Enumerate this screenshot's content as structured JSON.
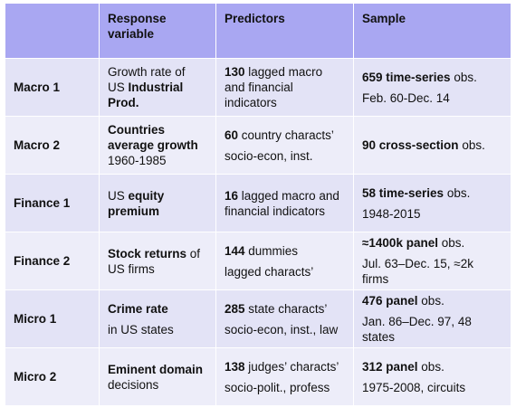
{
  "header": {
    "col1": "",
    "col2_line1": "Response",
    "col2_line2": "variable",
    "col3": "Predictors",
    "col4": "Sample"
  },
  "rows": [
    {
      "label": "Macro 1",
      "resp": {
        "l1a": "Growth rate of",
        "l2a": "US ",
        "l2b": "Industrial",
        "l3b": "Prod."
      },
      "pred": {
        "num": "130",
        "l1": " lagged macro",
        "l2": "and financial",
        "l3": "indicators"
      },
      "sample": {
        "b1": "659 time-series",
        "t1": " obs.",
        "l2": "Feb. 60-Dec. 14"
      }
    },
    {
      "label": "Macro 2",
      "resp": {
        "l1b": "Countries",
        "l2b": "average growth",
        "l3a": "1960-1985"
      },
      "pred": {
        "num": "60",
        "l1": " country characts’",
        "l2": "socio-econ, inst."
      },
      "sample": {
        "b1": "90 cross-section",
        "t1": " obs."
      }
    },
    {
      "label": "Finance 1",
      "resp": {
        "l1a": "US ",
        "l1b": "equity",
        "l2b": "premium"
      },
      "pred": {
        "num": "16",
        "l1": " lagged macro and",
        "l2": "financial indicators"
      },
      "sample": {
        "b1": "58 time-series",
        "t1": " obs.",
        "l2": "1948-2015"
      }
    },
    {
      "label": "Finance 2",
      "resp": {
        "l1b": "Stock returns",
        "l1a": " of",
        "l2a": "US firms"
      },
      "pred": {
        "num": "144",
        "l1": " dummies",
        "l2": "lagged characts’"
      },
      "sample": {
        "b1": "≈1400k panel",
        "t1": " obs.",
        "l2": "Jul. 63–Dec. 15, ≈2k",
        "l3": "firms"
      }
    },
    {
      "label": "Micro 1",
      "resp": {
        "l1b": "Crime rate",
        "l2a": "in US states"
      },
      "pred": {
        "num": "285",
        "l1": " state characts’",
        "l2": "socio-econ, inst., law"
      },
      "sample": {
        "b1": "476 panel",
        "t1": " obs.",
        "l2": "Jan. 86–Dec. 97, 48",
        "l3": "states"
      }
    },
    {
      "label": "Micro 2",
      "resp": {
        "l1b": "Eminent domain",
        "l2a": "decisions"
      },
      "pred": {
        "num": "138",
        "l1": " judges’ characts’",
        "l2": "socio-polit., profess"
      },
      "sample": {
        "b1": "312 panel",
        "t1": " obs.",
        "l2": "1975-2008, circuits"
      }
    }
  ],
  "colors": {
    "header_bg": "#a9a7f2",
    "row_odd_bg": "#e3e3f6",
    "row_even_bg": "#ededf9"
  }
}
